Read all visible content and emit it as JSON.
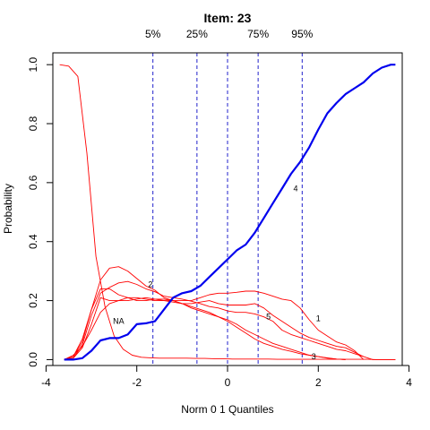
{
  "chart_data": {
    "type": "line",
    "title": "Item:  23",
    "xlabel": "Norm 0 1 Quantiles",
    "ylabel": "Probability",
    "xlim": [
      -3.85,
      3.85
    ],
    "ylim": [
      -0.02,
      1.04
    ],
    "x_ticks": [
      -4,
      -2,
      0,
      2,
      4
    ],
    "x_tick_labels": [
      "-4",
      "-2",
      "0",
      "2",
      "4"
    ],
    "y_ticks": [
      0.0,
      0.2,
      0.4,
      0.6,
      0.8,
      1.0
    ],
    "y_tick_labels": [
      "0.0",
      "0.2",
      "0.4",
      "0.6",
      "0.8",
      "1.0"
    ],
    "grid": false,
    "colors": {
      "key": "#0000ee",
      "other": "#ff0000",
      "quantile_line": "#2222cc"
    },
    "quantile_lines": [
      {
        "label": "5%",
        "x": -1.645
      },
      {
        "label": "25%",
        "x": -0.674
      },
      {
        "label": "",
        "x": 0.0
      },
      {
        "label": "75%",
        "x": 0.674
      },
      {
        "label": "95%",
        "x": 1.645
      }
    ],
    "series": [
      {
        "name": "4",
        "role": "key",
        "label_at": [
          1.5,
          0.58
        ],
        "x": [
          -3.6,
          -3.4,
          -3.2,
          -3.0,
          -2.8,
          -2.6,
          -2.4,
          -2.2,
          -2.0,
          -1.8,
          -1.6,
          -1.4,
          -1.2,
          -1.0,
          -0.8,
          -0.6,
          -0.4,
          -0.2,
          0.0,
          0.2,
          0.4,
          0.6,
          0.8,
          1.0,
          1.2,
          1.4,
          1.6,
          1.8,
          2.0,
          2.2,
          2.4,
          2.6,
          2.8,
          3.0,
          3.2,
          3.4,
          3.6,
          3.7
        ],
        "values": [
          0.0,
          0.0,
          0.005,
          0.03,
          0.065,
          0.073,
          0.073,
          0.085,
          0.12,
          0.123,
          0.13,
          0.17,
          0.21,
          0.225,
          0.232,
          0.25,
          0.28,
          0.31,
          0.34,
          0.37,
          0.39,
          0.43,
          0.48,
          0.53,
          0.58,
          0.63,
          0.67,
          0.72,
          0.78,
          0.835,
          0.87,
          0.9,
          0.92,
          0.94,
          0.97,
          0.99,
          1.0,
          1.0
        ]
      },
      {
        "name": "",
        "role": "other",
        "x": [
          -3.7,
          -3.5,
          -3.3,
          -3.1,
          -2.9,
          -2.7,
          -2.5,
          -2.3,
          -2.1,
          -1.9,
          -1.7,
          -1.5,
          -1.3,
          -1.1,
          -0.9,
          -0.7,
          -0.5,
          -0.3,
          -0.1,
          0.1,
          0.3,
          0.5,
          0.7,
          0.9,
          1.1,
          1.3,
          1.5,
          1.7,
          1.9,
          2.1,
          2.3,
          2.5,
          2.7,
          2.9,
          3.1,
          3.3,
          3.5,
          3.7
        ],
        "values": [
          1.0,
          0.995,
          0.96,
          0.7,
          0.35,
          0.18,
          0.08,
          0.035,
          0.015,
          0.008,
          0.006,
          0.005,
          0.005,
          0.005,
          0.005,
          0.004,
          0.004,
          0.003,
          0.003,
          0.002,
          0.002,
          0.002,
          0.002,
          0.002,
          0.001,
          0.001,
          0.001,
          0.001,
          0.001,
          0.001,
          0.001,
          0.001,
          0.001,
          0.001,
          0.001,
          0.0,
          0.0,
          0.0
        ]
      },
      {
        "name": "1",
        "role": "other",
        "label_at": [
          2.0,
          0.14
        ],
        "x": [
          -3.6,
          -3.4,
          -3.2,
          -3.0,
          -2.8,
          -2.6,
          -2.4,
          -2.2,
          -2.0,
          -1.8,
          -1.6,
          -1.4,
          -1.2,
          -1.0,
          -0.8,
          -0.6,
          -0.4,
          -0.2,
          0.0,
          0.2,
          0.4,
          0.6,
          0.8,
          1.0,
          1.2,
          1.4,
          1.6,
          1.8,
          2.0,
          2.2,
          2.4,
          2.6,
          2.8,
          3.0
        ],
        "values": [
          0.0,
          0.015,
          0.045,
          0.1,
          0.16,
          0.19,
          0.2,
          0.2,
          0.205,
          0.21,
          0.205,
          0.2,
          0.2,
          0.2,
          0.2,
          0.21,
          0.22,
          0.225,
          0.225,
          0.228,
          0.232,
          0.232,
          0.225,
          0.215,
          0.205,
          0.2,
          0.175,
          0.135,
          0.1,
          0.08,
          0.06,
          0.05,
          0.03,
          0.0
        ]
      },
      {
        "name": "2",
        "role": "other",
        "label_at": [
          -1.7,
          0.255
        ],
        "x": [
          -3.6,
          -3.4,
          -3.2,
          -3.0,
          -2.8,
          -2.6,
          -2.4,
          -2.2,
          -2.0,
          -1.8,
          -1.6,
          -1.4,
          -1.2,
          -1.0,
          -0.8,
          -0.6,
          -0.4,
          -0.2,
          0.0,
          0.2,
          0.4,
          0.6,
          0.8,
          1.0,
          1.2,
          1.4,
          1.6,
          1.8,
          2.0,
          2.2,
          2.4,
          2.6
        ],
        "values": [
          0.0,
          0.01,
          0.07,
          0.17,
          0.27,
          0.31,
          0.315,
          0.3,
          0.275,
          0.25,
          0.235,
          0.21,
          0.2,
          0.19,
          0.175,
          0.165,
          0.155,
          0.145,
          0.135,
          0.12,
          0.1,
          0.085,
          0.07,
          0.055,
          0.045,
          0.035,
          0.025,
          0.015,
          0.01,
          0.005,
          0.002,
          0.0
        ]
      },
      {
        "name": "3",
        "role": "other",
        "label_at": [
          1.9,
          0.01
        ],
        "x": [
          -3.6,
          -3.4,
          -3.2,
          -3.0,
          -2.8,
          -2.6,
          -2.4,
          -2.2,
          -2.0,
          -1.8,
          -1.6,
          -1.4,
          -1.2,
          -1.0,
          -0.8,
          -0.6,
          -0.4,
          -0.2,
          0.0,
          0.2,
          0.4,
          0.6,
          0.8,
          1.0,
          1.2,
          1.4,
          1.6,
          1.8,
          2.0,
          2.2,
          2.4,
          2.6
        ],
        "values": [
          0.0,
          0.005,
          0.04,
          0.12,
          0.21,
          0.2,
          0.2,
          0.21,
          0.21,
          0.205,
          0.2,
          0.2,
          0.195,
          0.19,
          0.18,
          0.17,
          0.16,
          0.145,
          0.13,
          0.11,
          0.09,
          0.07,
          0.055,
          0.045,
          0.035,
          0.028,
          0.02,
          0.015,
          0.01,
          0.006,
          0.002,
          0.0
        ]
      },
      {
        "name": "5",
        "role": "other",
        "label_at": [
          0.9,
          0.145
        ],
        "x": [
          -3.6,
          -3.4,
          -3.2,
          -3.0,
          -2.8,
          -2.6,
          -2.4,
          -2.2,
          -2.0,
          -1.8,
          -1.6,
          -1.4,
          -1.2,
          -1.0,
          -0.8,
          -0.6,
          -0.4,
          -0.2,
          0.0,
          0.2,
          0.4,
          0.6,
          0.8,
          1.0,
          1.2,
          1.4,
          1.6,
          1.8,
          2.0,
          2.2,
          2.4,
          2.6,
          2.8,
          3.0
        ],
        "values": [
          0.0,
          0.005,
          0.05,
          0.15,
          0.225,
          0.245,
          0.26,
          0.265,
          0.255,
          0.24,
          0.23,
          0.215,
          0.21,
          0.205,
          0.198,
          0.19,
          0.18,
          0.175,
          0.165,
          0.16,
          0.16,
          0.155,
          0.145,
          0.13,
          0.1,
          0.085,
          0.075,
          0.065,
          0.055,
          0.045,
          0.035,
          0.03,
          0.02,
          0.01
        ]
      },
      {
        "name": "NA",
        "role": "other",
        "label_at": [
          -2.4,
          0.13
        ],
        "x": [
          -3.6,
          -3.4,
          -3.2,
          -3.0,
          -2.8,
          -2.6,
          -2.4,
          -2.2,
          -2.0,
          -1.8,
          -1.6,
          -1.4,
          -1.2,
          -1.0,
          -0.8,
          -0.6,
          -0.4,
          -0.2,
          0.0,
          0.2,
          0.4,
          0.6,
          0.8,
          1.0,
          1.2,
          1.4,
          1.6,
          1.8,
          2.0,
          2.2,
          2.4,
          2.6,
          2.8,
          3.0,
          3.2,
          3.4,
          3.6,
          3.7
        ],
        "values": [
          0.0,
          0.01,
          0.06,
          0.17,
          0.24,
          0.24,
          0.22,
          0.21,
          0.2,
          0.2,
          0.205,
          0.205,
          0.2,
          0.19,
          0.19,
          0.195,
          0.2,
          0.19,
          0.185,
          0.185,
          0.185,
          0.19,
          0.175,
          0.15,
          0.13,
          0.11,
          0.09,
          0.075,
          0.065,
          0.055,
          0.045,
          0.04,
          0.025,
          0.01,
          0.0,
          0.0,
          0.0,
          0.0
        ]
      }
    ]
  }
}
